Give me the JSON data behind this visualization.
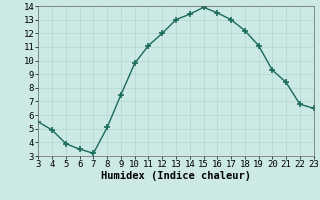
{
  "x": [
    3,
    4,
    5,
    6,
    7,
    8,
    9,
    10,
    11,
    12,
    13,
    14,
    15,
    16,
    17,
    18,
    19,
    20,
    21,
    22,
    23
  ],
  "y": [
    5.5,
    4.9,
    3.9,
    3.5,
    3.2,
    5.1,
    7.5,
    9.8,
    11.1,
    12.0,
    13.0,
    13.4,
    13.9,
    13.5,
    13.0,
    12.2,
    11.1,
    9.3,
    8.4,
    6.8,
    6.5
  ],
  "line_color": "#1a6b5a",
  "bg_color": "#cce9e5",
  "grid_color": "#b0d8d2",
  "xlabel": "Humidex (Indice chaleur)",
  "xlim": [
    3,
    23
  ],
  "ylim": [
    3,
    14
  ],
  "xticks": [
    3,
    4,
    5,
    6,
    7,
    8,
    9,
    10,
    11,
    12,
    13,
    14,
    15,
    16,
    17,
    18,
    19,
    20,
    21,
    22,
    23
  ],
  "yticks": [
    3,
    4,
    5,
    6,
    7,
    8,
    9,
    10,
    11,
    12,
    13,
    14
  ],
  "xlabel_fontsize": 7.5,
  "tick_fontsize": 6.5,
  "marker": "+",
  "marker_size": 5,
  "line_width": 1.0
}
